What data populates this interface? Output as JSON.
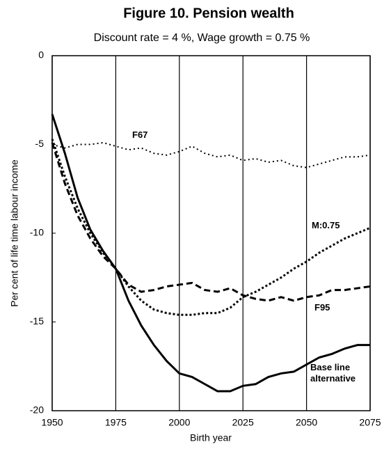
{
  "chart_data": {
    "type": "line",
    "title": "Figure 10. Pension wealth",
    "subtitle": "Discount rate = 4 %, Wage growth = 0.75 %",
    "xlabel": "Birth year",
    "ylabel": "Per cent of life time labour income",
    "x": [
      1950,
      1955,
      1960,
      1965,
      1970,
      1975,
      1980,
      1985,
      1990,
      1995,
      2000,
      2005,
      2010,
      2015,
      2020,
      2025,
      2030,
      2035,
      2040,
      2045,
      2050,
      2055,
      2060,
      2065,
      2070,
      2075
    ],
    "series": [
      {
        "name": "F67",
        "color": "#000000",
        "dash": "dotted-sparse",
        "values": [
          -5.0,
          -5.2,
          -5.0,
          -5.0,
          -4.9,
          -5.1,
          -5.3,
          -5.2,
          -5.5,
          -5.6,
          -5.4,
          -5.1,
          -5.5,
          -5.7,
          -5.6,
          -5.9,
          -5.8,
          -6.0,
          -5.9,
          -6.2,
          -6.3,
          -6.1,
          -5.9,
          -5.7,
          -5.7,
          -5.6
        ]
      },
      {
        "name": "M:0.75",
        "color": "#000000",
        "dash": "dotted",
        "values": [
          -4.7,
          -6.8,
          -8.6,
          -10.0,
          -11.1,
          -12.0,
          -13.0,
          -13.8,
          -14.3,
          -14.5,
          -14.6,
          -14.6,
          -14.5,
          -14.5,
          -14.2,
          -13.6,
          -13.3,
          -12.9,
          -12.5,
          -12.0,
          -11.6,
          -11.1,
          -10.7,
          -10.3,
          -10.0,
          -9.7
        ]
      },
      {
        "name": "F95",
        "color": "#000000",
        "dash": "dashed",
        "values": [
          -4.9,
          -7.2,
          -9.0,
          -10.3,
          -11.3,
          -12.0,
          -12.9,
          -13.3,
          -13.2,
          -13.0,
          -12.9,
          -12.8,
          -13.2,
          -13.3,
          -13.1,
          -13.5,
          -13.7,
          -13.8,
          -13.6,
          -13.8,
          -13.6,
          -13.5,
          -13.2,
          -13.2,
          -13.1,
          -13.0
        ]
      },
      {
        "name": "Base line alternative",
        "color": "#000000",
        "dash": "solid",
        "values": [
          -3.3,
          -5.5,
          -8.0,
          -9.8,
          -11.0,
          -12.0,
          -13.8,
          -15.2,
          -16.3,
          -17.2,
          -17.9,
          -18.1,
          -18.5,
          -18.9,
          -18.9,
          -18.6,
          -18.5,
          -18.1,
          -17.9,
          -17.8,
          -17.4,
          -17.0,
          -16.8,
          -16.5,
          -16.3,
          -16.3
        ]
      }
    ],
    "xlim": [
      1950,
      2075
    ],
    "xticks": [
      1950,
      1975,
      2000,
      2025,
      2050,
      2075
    ],
    "ylim": [
      -20,
      0
    ],
    "yticks": [
      0,
      -5,
      -10,
      -15,
      -20
    ],
    "grid": "x"
  }
}
